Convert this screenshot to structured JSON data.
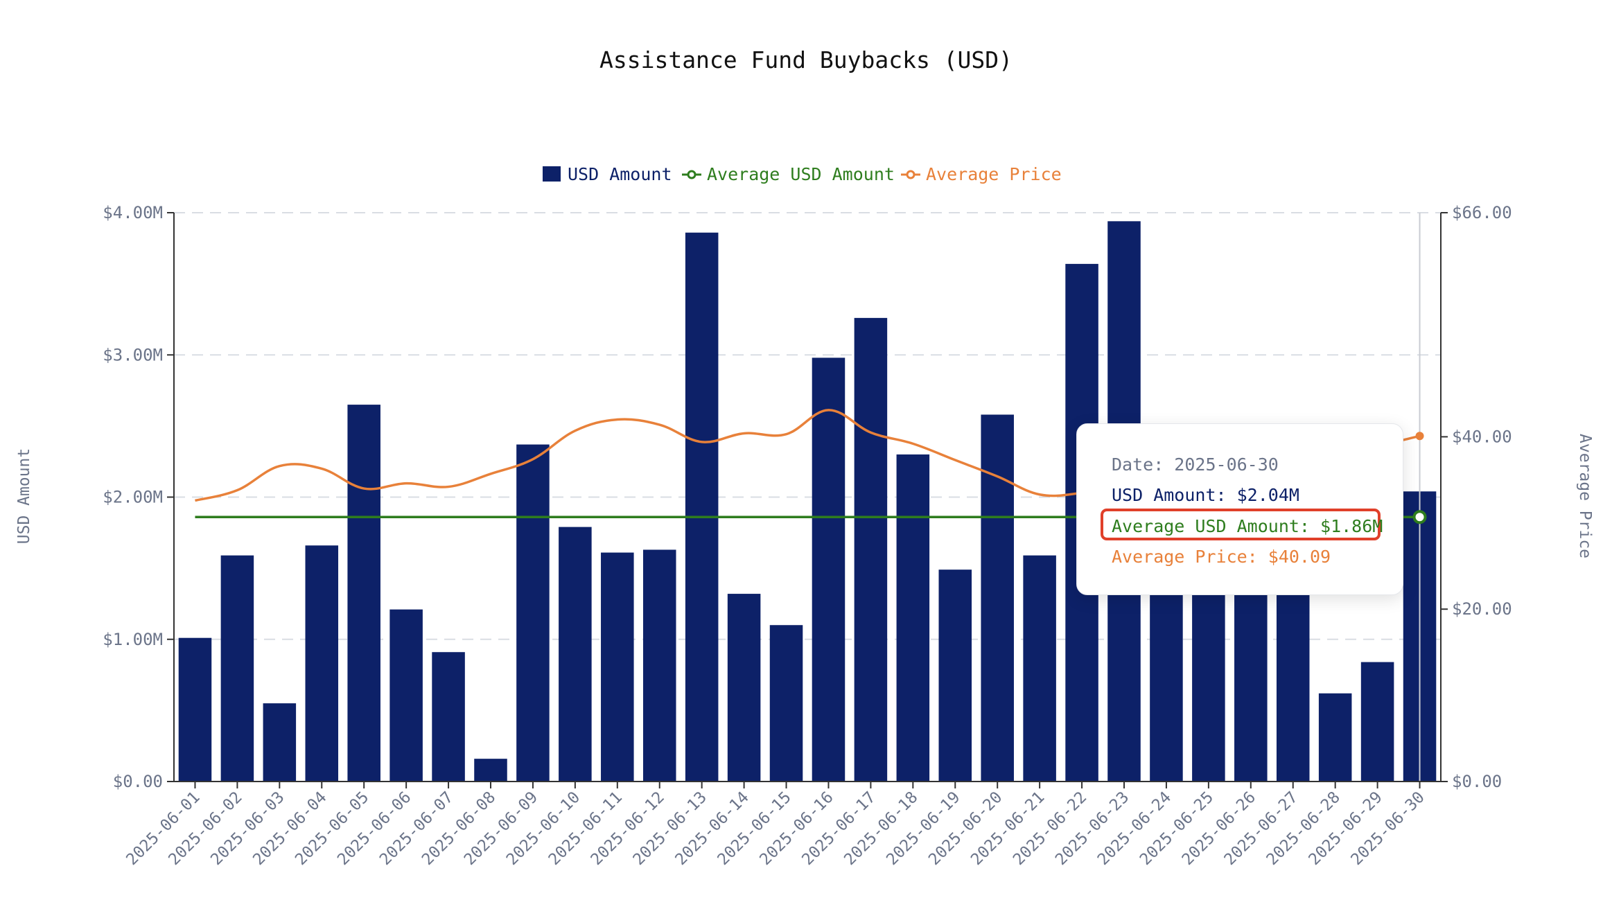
{
  "chart_data": {
    "type": "bar",
    "title": "Assistance Fund Buybacks (USD)",
    "xlabel": "",
    "ylabel": "USD Amount",
    "y2label": "Average Price",
    "ylim": [
      0,
      4000000
    ],
    "y2lim": [
      0,
      66
    ],
    "yticks": [
      "$0.00",
      "$1.00M",
      "$2.00M",
      "$3.00M",
      "$4.00M"
    ],
    "y2ticks": [
      "$0.00",
      "$20.00",
      "$40.00",
      "$66.00"
    ],
    "y2tick_values": [
      0,
      20,
      40,
      66
    ],
    "grid": true,
    "legend_position": "top-center",
    "categories": [
      "2025-06-01",
      "2025-06-02",
      "2025-06-03",
      "2025-06-04",
      "2025-06-05",
      "2025-06-06",
      "2025-06-07",
      "2025-06-08",
      "2025-06-09",
      "2025-06-10",
      "2025-06-11",
      "2025-06-12",
      "2025-06-13",
      "2025-06-14",
      "2025-06-15",
      "2025-06-16",
      "2025-06-17",
      "2025-06-18",
      "2025-06-19",
      "2025-06-20",
      "2025-06-21",
      "2025-06-22",
      "2025-06-23",
      "2025-06-24",
      "2025-06-25",
      "2025-06-26",
      "2025-06-27",
      "2025-06-28",
      "2025-06-29",
      "2025-06-30"
    ],
    "series": [
      {
        "name": "USD Amount",
        "type": "bar",
        "axis": "left",
        "color": "#0d2168",
        "values": [
          1010000,
          1590000,
          550000,
          1660000,
          2650000,
          1210000,
          910000,
          160000,
          2370000,
          1790000,
          1610000,
          1630000,
          3860000,
          1320000,
          1100000,
          2980000,
          3260000,
          2300000,
          1490000,
          2580000,
          1590000,
          3640000,
          3940000,
          1500000,
          1500000,
          1500000,
          1500000,
          620000,
          840000,
          2040000
        ]
      },
      {
        "name": "Average USD Amount",
        "type": "line",
        "axis": "left",
        "color": "#2e7d1e",
        "values": [
          1860000,
          1860000,
          1860000,
          1860000,
          1860000,
          1860000,
          1860000,
          1860000,
          1860000,
          1860000,
          1860000,
          1860000,
          1860000,
          1860000,
          1860000,
          1860000,
          1860000,
          1860000,
          1860000,
          1860000,
          1860000,
          1860000,
          1860000,
          1860000,
          1860000,
          1860000,
          1860000,
          1860000,
          1860000,
          1860000
        ]
      },
      {
        "name": "Average Price",
        "type": "line",
        "axis": "right",
        "color": "#e8813a",
        "values": [
          32.6,
          33.8,
          36.6,
          36.3,
          34.0,
          34.6,
          34.2,
          35.7,
          37.4,
          40.7,
          42.0,
          41.4,
          39.4,
          40.4,
          40.3,
          43.1,
          40.5,
          39.2,
          37.3,
          35.4,
          33.3,
          33.5,
          34.5,
          36.0,
          37.0,
          37.5,
          38.0,
          38.5,
          39.0,
          40.09
        ]
      }
    ],
    "tooltip": {
      "date_label": "Date: 2025-06-30",
      "usd_label": "USD Amount: $2.04M",
      "avg_label": "Average USD Amount: $1.86M",
      "price_label": "Average Price: $40.09"
    }
  },
  "colors": {
    "bar": "#0d2168",
    "avg_line": "#2e7d1e",
    "price_line": "#e8813a",
    "axis_text": "#6b7489",
    "grid": "#d9dde3",
    "highlight": "#e0402a",
    "title": "#111111"
  }
}
